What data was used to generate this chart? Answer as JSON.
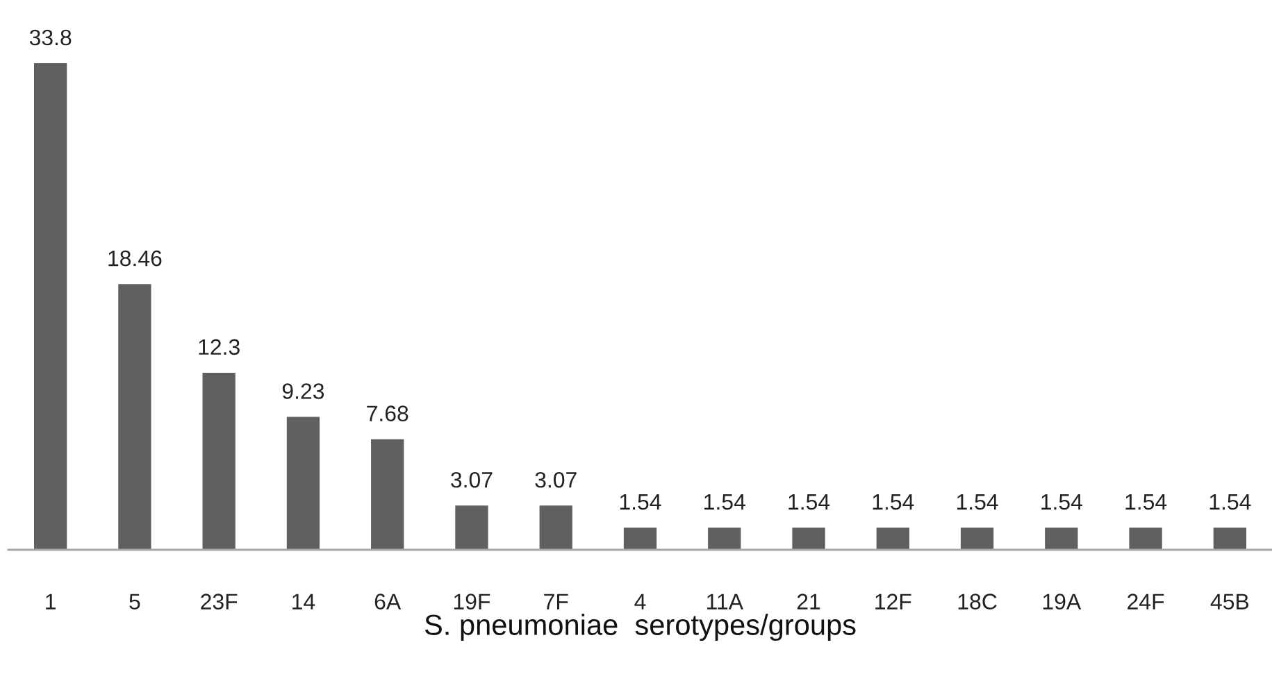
{
  "chart_data": {
    "type": "bar",
    "categories": [
      "1",
      "5",
      "23F",
      "14",
      "6A",
      "19F",
      "7F",
      "4",
      "11A",
      "21",
      "12F",
      "18C",
      "19A",
      "24F",
      "45B"
    ],
    "values": [
      33.8,
      18.46,
      12.3,
      9.23,
      7.68,
      3.07,
      3.07,
      1.54,
      1.54,
      1.54,
      1.54,
      1.54,
      1.54,
      1.54,
      1.54
    ],
    "color": "#606060",
    "xlabel": "S. pneumoniae  serotypes/groups",
    "data_labels": true,
    "grid": false,
    "legend": false
  }
}
